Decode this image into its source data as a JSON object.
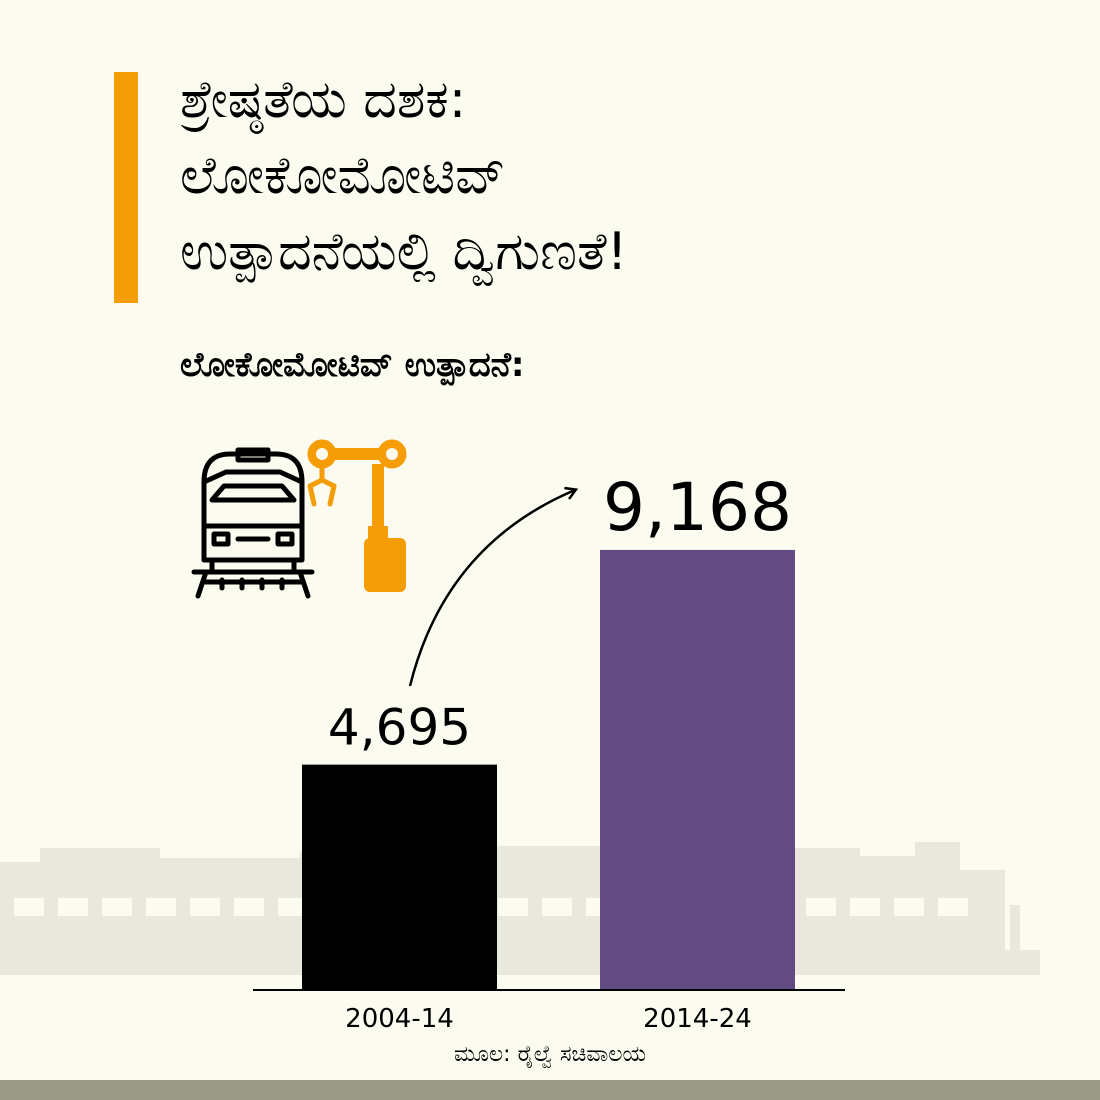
{
  "title_lines": [
    "ಶ್ರೇಷ್ಠತೆಯ ದಶಕ:",
    "ಲೋಕೋಮೋಟಿವ್",
    "ಉತ್ಪಾದನೆಯಲ್ಲಿ ದ್ವಿಗುಣತೆ!"
  ],
  "subtitle": "ಲೋಕೋಮೋಟಿವ್ ಉತ್ಪಾದನೆ:",
  "source": "ಮೂಲ: ರೈಲ್ವೆ ಸಚಿವಾಲಯ",
  "icons": {
    "locomotive": "locomotive-icon",
    "robot_arm": "robot-arm-icon",
    "trend": "curved-arrow-icon"
  },
  "colors": {
    "background": "#fbfbf0",
    "accent": "#f59d06",
    "bar_1": "#000000",
    "bar_2": "#624a82",
    "silhouette": "#e8e8dc",
    "axis": "#000000"
  },
  "chart_data": {
    "type": "bar",
    "categories": [
      "2004-14",
      "2014-24"
    ],
    "values": [
      4695,
      9168
    ],
    "value_labels": [
      "4,695",
      "9,168"
    ],
    "ylim": [
      0,
      10000
    ],
    "grid": false,
    "legend": "none"
  }
}
